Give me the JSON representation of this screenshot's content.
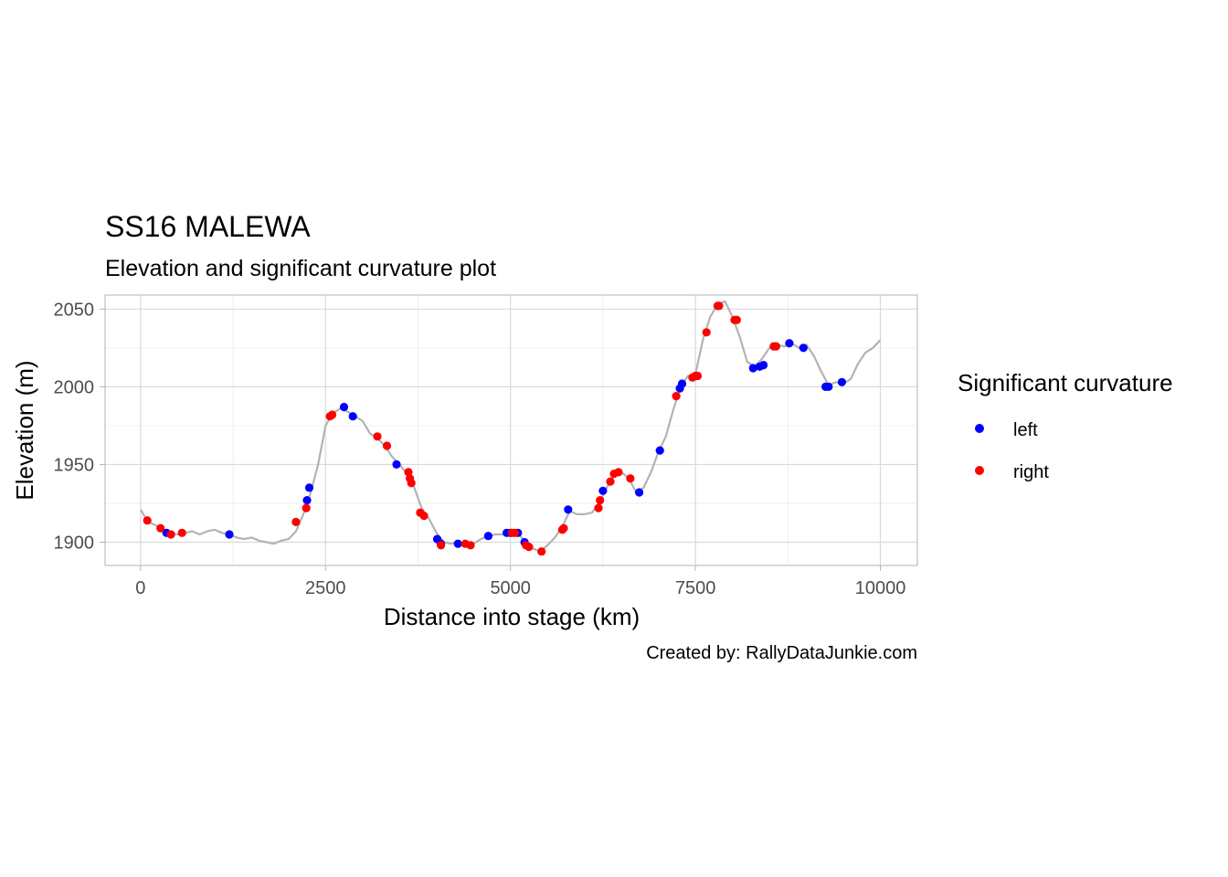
{
  "chart_data": {
    "type": "line",
    "title": "SS16 MALEWA",
    "subtitle": "Elevation and significant curvature plot",
    "xlabel": "Distance into stage (km)",
    "ylabel": "Elevation (m)",
    "caption": "Created by: RallyDataJunkie.com",
    "xlim": [
      -480,
      10500
    ],
    "ylim": [
      1885,
      2059
    ],
    "x_ticks": [
      0,
      2500,
      5000,
      7500,
      10000
    ],
    "x_tick_labels": [
      "0",
      "2500",
      "5000",
      "7500",
      "10000"
    ],
    "y_ticks": [
      1900,
      1950,
      2000,
      2050
    ],
    "y_tick_labels": [
      "1900",
      "1950",
      "2000",
      "2050"
    ],
    "grid": true,
    "legend_position": "right",
    "legend_title": "Significant curvature",
    "series": [
      {
        "name": "elevation",
        "color": "#b3b3b3",
        "x": [
          0,
          100,
          200,
          300,
          400,
          500,
          600,
          700,
          800,
          900,
          1000,
          1100,
          1200,
          1300,
          1400,
          1500,
          1600,
          1700,
          1800,
          1900,
          2000,
          2100,
          2200,
          2300,
          2400,
          2500,
          2600,
          2700,
          2800,
          2900,
          3000,
          3100,
          3200,
          3300,
          3400,
          3500,
          3600,
          3700,
          3800,
          3900,
          4000,
          4100,
          4200,
          4300,
          4400,
          4500,
          4600,
          4700,
          4800,
          4900,
          5000,
          5100,
          5200,
          5300,
          5400,
          5500,
          5600,
          5700,
          5800,
          5900,
          6000,
          6100,
          6200,
          6300,
          6400,
          6500,
          6600,
          6700,
          6800,
          6900,
          7000,
          7100,
          7200,
          7300,
          7400,
          7500,
          7600,
          7700,
          7800,
          7900,
          8000,
          8100,
          8200,
          8300,
          8400,
          8500,
          8600,
          8700,
          8800,
          8900,
          9000,
          9100,
          9200,
          9300,
          9400,
          9500,
          9600,
          9700,
          9800,
          9900,
          10000
        ],
        "values": [
          1921,
          1913,
          1911,
          1908,
          1906,
          1905,
          1906,
          1907,
          1905,
          1907,
          1908,
          1906,
          1905,
          1903,
          1902,
          1903,
          1901,
          1900,
          1899,
          1901,
          1902,
          1907,
          1918,
          1932,
          1950,
          1975,
          1983,
          1986,
          1984,
          1981,
          1978,
          1970,
          1967,
          1962,
          1955,
          1950,
          1944,
          1935,
          1922,
          1915,
          1906,
          1900,
          1899,
          1900,
          1899,
          1899,
          1902,
          1904,
          1905,
          1905,
          1906,
          1906,
          1900,
          1896,
          1894,
          1898,
          1903,
          1910,
          1920,
          1918,
          1918,
          1919,
          1925,
          1935,
          1943,
          1945,
          1941,
          1932,
          1935,
          1945,
          1958,
          1968,
          1985,
          2000,
          2007,
          2008,
          2030,
          2045,
          2053,
          2055,
          2045,
          2032,
          2016,
          2013,
          2018,
          2025,
          2027,
          2026,
          2028,
          2025,
          2027,
          2020,
          2010,
          2001,
          2003,
          2002,
          2005,
          2015,
          2022,
          2025,
          2030
        ]
      },
      {
        "name": "left",
        "color": "#0000ff",
        "x": [
          350,
          1200,
          2250,
          2280,
          2750,
          2870,
          3460,
          4010,
          4060,
          4290,
          4700,
          4950,
          5000,
          5100,
          5190,
          5780,
          6250,
          6740,
          7020,
          7290,
          7320,
          8280,
          8370,
          8420,
          8770,
          8960,
          9260,
          9300,
          9480
        ],
        "values": [
          1906,
          1905,
          1927,
          1935,
          1987,
          1981,
          1950,
          1902,
          1899,
          1899,
          1904,
          1906,
          1906,
          1906,
          1900,
          1921,
          1933,
          1932,
          1959,
          1999,
          2002,
          2012,
          2013,
          2014,
          2028,
          2025,
          2000,
          2000,
          2003
        ]
      },
      {
        "name": "right",
        "color": "#ff0000",
        "x": [
          90,
          270,
          410,
          560,
          2100,
          2240,
          2560,
          2590,
          3200,
          3330,
          3620,
          3640,
          3660,
          3780,
          3830,
          4060,
          4390,
          4460,
          5020,
          5060,
          5210,
          5250,
          5420,
          5700,
          5720,
          6190,
          6210,
          6350,
          6400,
          6460,
          6620,
          7240,
          7460,
          7500,
          7530,
          7650,
          7800,
          7820,
          8030,
          8060,
          8560,
          8590
        ],
        "values": [
          1914,
          1909,
          1905,
          1906,
          1913,
          1922,
          1981,
          1982,
          1968,
          1962,
          1945,
          1941,
          1938,
          1919,
          1917,
          1898,
          1899,
          1898,
          1906,
          1906,
          1898,
          1897,
          1894,
          1908,
          1909,
          1922,
          1927,
          1939,
          1944,
          1945,
          1941,
          1994,
          2006,
          2007,
          2007,
          2035,
          2052,
          2052,
          2043,
          2043,
          2026,
          2026
        ]
      }
    ]
  }
}
